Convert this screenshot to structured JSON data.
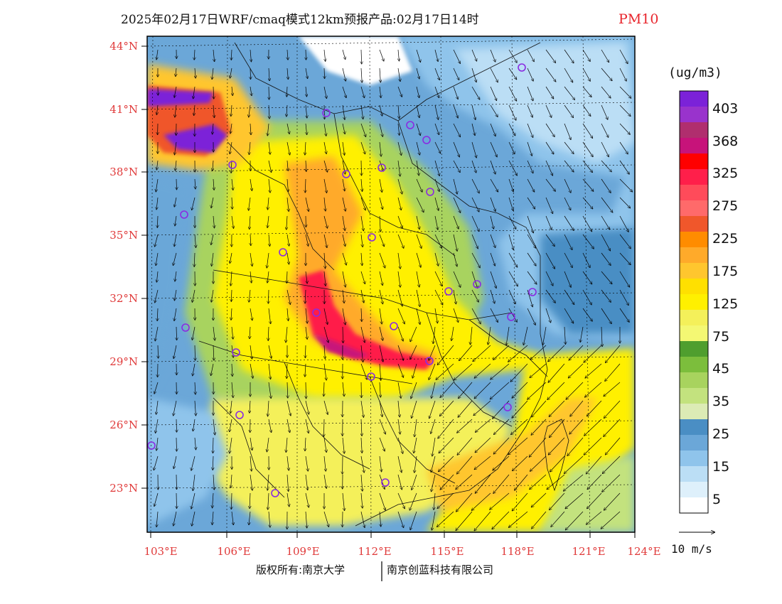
{
  "title": {
    "main": "2025年02月17日WRF/cmaq模式12km预报产品:02月17日14时",
    "variable": "PM10"
  },
  "units": "(ug/m3)",
  "colorbar": {
    "labels": [
      "403",
      "368",
      "325",
      "275",
      "225",
      "175",
      "125",
      "75",
      "45",
      "35",
      "25",
      "15",
      "5"
    ],
    "colors": [
      "#7b22d8",
      "#9933cc",
      "#b02e6e",
      "#c7137a",
      "#ff0000",
      "#ff1f4a",
      "#ff4b5a",
      "#ff6a6a",
      "#f0572b",
      "#ff8c00",
      "#ffaa2a",
      "#ffc62e",
      "#ffe000",
      "#fff000",
      "#f4f05a",
      "#f4f873",
      "#4f9e2e",
      "#7cbe3c",
      "#a8d35e",
      "#c3e27e",
      "#dcebb5",
      "#4a8ec4",
      "#6ba7d8",
      "#8fc4eb",
      "#bbdef5",
      "#def0fb",
      "#ffffff"
    ]
  },
  "axes": {
    "lat_labels": [
      "44°N",
      "41°N",
      "38°N",
      "35°N",
      "32°N",
      "29°N",
      "26°N",
      "23°N"
    ],
    "lon_labels": [
      "103°E",
      "106°E",
      "109°E",
      "112°E",
      "115°E",
      "118°E",
      "121°E",
      "124°E"
    ]
  },
  "wind_reference": "10 m/s",
  "footer": {
    "left": "版权所有:南京大学",
    "right": "南京创蓝科技有限公司"
  },
  "field_colors": {
    "bg_blue": "#6ba7d8",
    "yellow": "#fff000",
    "orange": "#ffaa2a",
    "red": "#ff1f4a",
    "purple": "#7b22d8",
    "green": "#7cbe3c",
    "light_blue": "#bbdef5"
  }
}
